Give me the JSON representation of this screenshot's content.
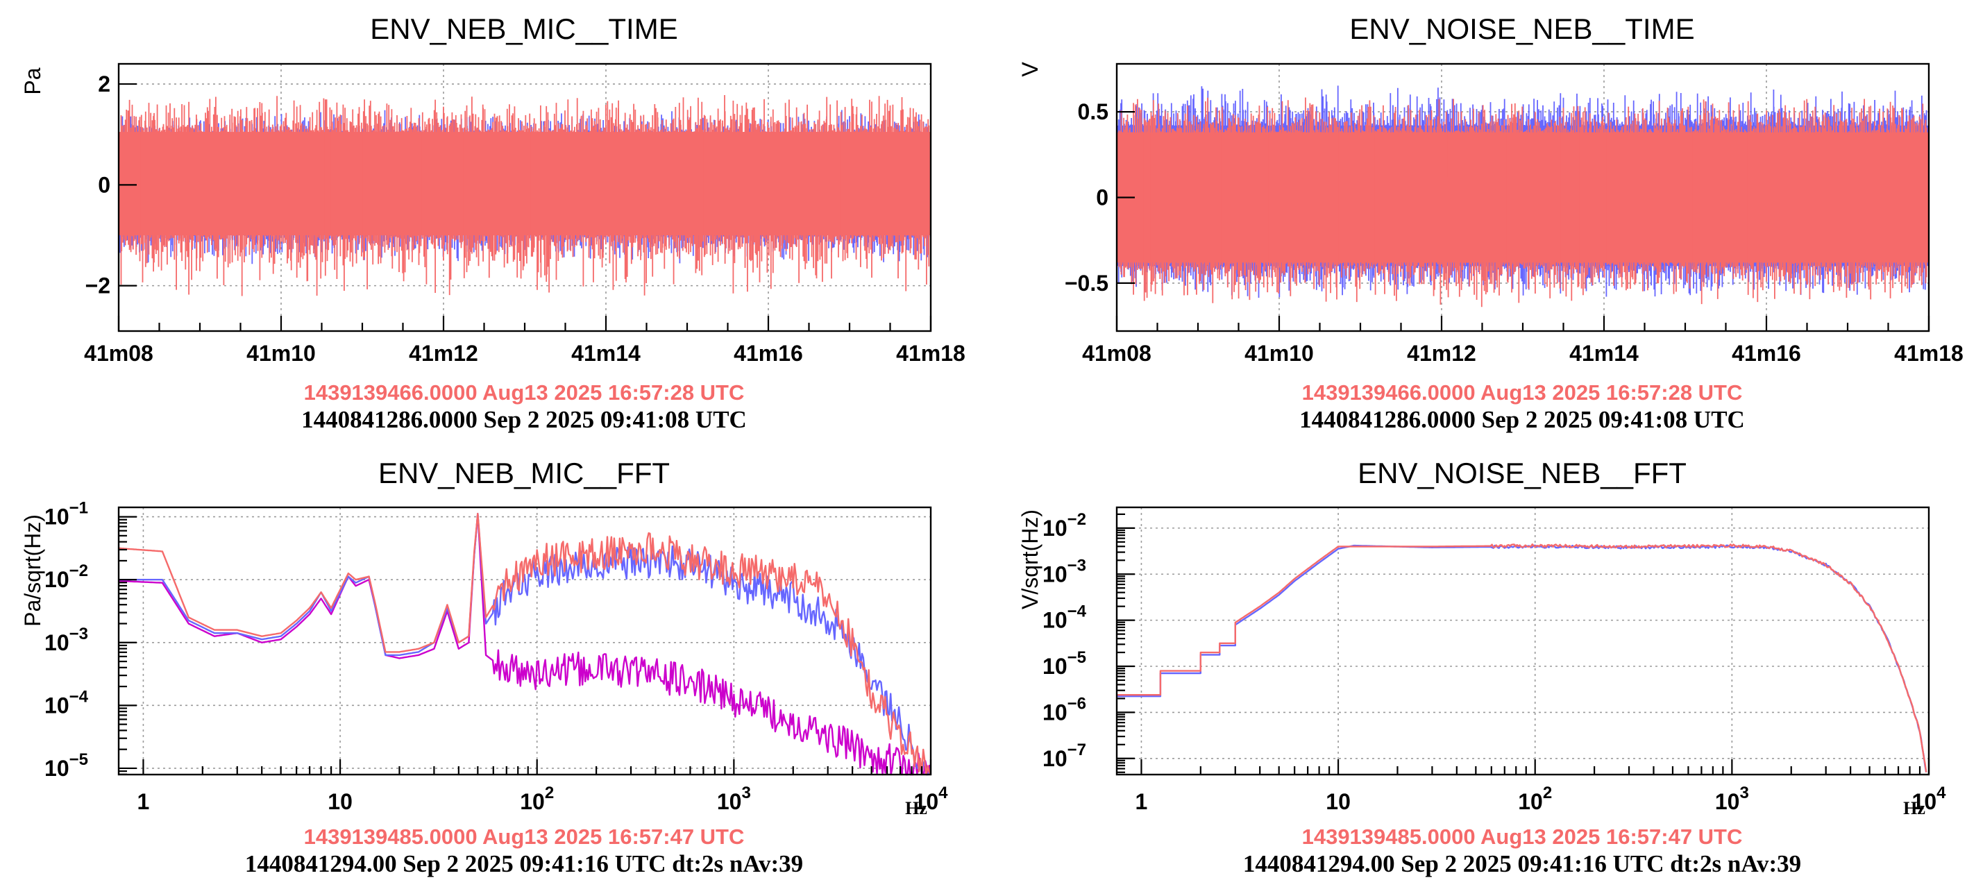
{
  "chart_data": [
    {
      "type": "line",
      "title": "ENV_NEB_MIC__TIME",
      "ylabel": "Pa",
      "xlabel": "",
      "x_ticks": [
        "41m08",
        "41m10",
        "41m12",
        "41m14",
        "41m16",
        "41m18"
      ],
      "xlim": [
        0,
        600
      ],
      "ylim": [
        -2.9,
        2.4
      ],
      "y_ticks": [
        {
          "v": 2,
          "label": "2"
        },
        {
          "v": 0,
          "label": "0"
        },
        {
          "v": -2,
          "label": "−2"
        }
      ],
      "grid": true,
      "series": [
        {
          "color": "#6666ff",
          "envelope": [
            -1.0,
            1.0
          ],
          "spike_max": 1.5,
          "spike_min": -1.6
        },
        {
          "color": "#f56a6a",
          "envelope": [
            -1.0,
            1.05
          ],
          "spike_max": 1.9,
          "spike_min": -2.3
        }
      ],
      "stamps": {
        "reference": "1439139466.0000 Aug13 2025 16:57:28 UTC",
        "current": "1440841286.0000 Sep 2 2025 09:41:08 UTC"
      }
    },
    {
      "type": "line",
      "title": "ENV_NOISE_NEB__TIME",
      "ylabel": "V",
      "xlabel": "",
      "x_ticks": [
        "41m08",
        "41m10",
        "41m12",
        "41m14",
        "41m16",
        "41m18"
      ],
      "xlim": [
        0,
        600
      ],
      "ylim": [
        -0.78,
        0.78
      ],
      "y_ticks": [
        {
          "v": 0.5,
          "label": "0.5"
        },
        {
          "v": 0,
          "label": "0"
        },
        {
          "v": -0.5,
          "label": "−0.5"
        }
      ],
      "grid": true,
      "series": [
        {
          "color": "#6666ff",
          "envelope": [
            -0.4,
            0.42
          ],
          "spike_max": 0.66,
          "spike_min": -0.6
        },
        {
          "color": "#f56a6a",
          "envelope": [
            -0.38,
            0.38
          ],
          "spike_max": 0.6,
          "spike_min": -0.66
        }
      ],
      "stamps": {
        "reference": "1439139466.0000 Aug13 2025 16:57:28 UTC",
        "current": "1440841286.0000 Sep 2 2025 09:41:08 UTC"
      }
    },
    {
      "type": "line",
      "title": "ENV_NEB_MIC__FFT",
      "ylabel": "Pa/sqrt(Hz)",
      "xlabel": "Hz",
      "x_scale": "log",
      "y_scale": "log",
      "xlim": [
        0.75,
        10000
      ],
      "ylim": [
        -5.1,
        -0.85
      ],
      "x_ticks": [
        {
          "v": 1,
          "label": "1"
        },
        {
          "v": 10,
          "label": "10"
        },
        {
          "v": 100,
          "label": "10",
          "exp": "2"
        },
        {
          "v": 1000,
          "label": "10",
          "exp": "3"
        },
        {
          "v": 10000,
          "label": "10",
          "exp": "4"
        }
      ],
      "y_ticks": [
        {
          "v": -1,
          "label": "10",
          "exp": "−1"
        },
        {
          "v": -2,
          "label": "10",
          "exp": "−2"
        },
        {
          "v": -3,
          "label": "10",
          "exp": "−3"
        },
        {
          "v": -4,
          "label": "10",
          "exp": "−4"
        },
        {
          "v": -5,
          "label": "10",
          "exp": "−5"
        }
      ],
      "grid": true,
      "series": [
        {
          "color": "#cc00cc",
          "points": [
            [
              0.75,
              -2.02
            ],
            [
              1.25,
              -2.05
            ],
            [
              1.7,
              -2.7
            ],
            [
              2.3,
              -2.9
            ],
            [
              3,
              -2.85
            ],
            [
              4,
              -3.0
            ],
            [
              5,
              -2.95
            ],
            [
              6,
              -2.75
            ],
            [
              7,
              -2.55
            ],
            [
              8,
              -2.3
            ],
            [
              9,
              -2.55
            ],
            [
              11,
              -1.95
            ],
            [
              12,
              -2.1
            ],
            [
              14,
              -2.0
            ],
            [
              15,
              -2.4
            ],
            [
              17,
              -3.2
            ],
            [
              20,
              -3.25
            ],
            [
              25,
              -3.2
            ],
            [
              30,
              -3.1
            ],
            [
              35,
              -2.5
            ],
            [
              40,
              -3.1
            ],
            [
              45,
              -3.0
            ],
            [
              48,
              -1.6
            ],
            [
              50,
              -0.95
            ],
            [
              55,
              -3.2
            ],
            [
              70,
              -3.45
            ],
            [
              100,
              -3.5
            ],
            [
              200,
              -3.4
            ],
            [
              400,
              -3.5
            ],
            [
              700,
              -3.7
            ],
            [
              1000,
              -3.9
            ],
            [
              2000,
              -4.25
            ],
            [
              3000,
              -4.5
            ],
            [
              5000,
              -4.8
            ],
            [
              8000,
              -5.0
            ],
            [
              10000,
              -5.1
            ]
          ]
        },
        {
          "color": "#6666ff",
          "points": [
            [
              0.75,
              -2.0
            ],
            [
              1.25,
              -2.0
            ],
            [
              1.7,
              -2.65
            ],
            [
              2.3,
              -2.85
            ],
            [
              3,
              -2.85
            ],
            [
              4,
              -2.95
            ],
            [
              5,
              -2.9
            ],
            [
              6,
              -2.7
            ],
            [
              7,
              -2.5
            ],
            [
              8,
              -2.2
            ],
            [
              9,
              -2.5
            ],
            [
              11,
              -1.95
            ],
            [
              12,
              -2.05
            ],
            [
              14,
              -1.95
            ],
            [
              15,
              -2.4
            ],
            [
              17,
              -3.2
            ],
            [
              20,
              -3.2
            ],
            [
              25,
              -3.15
            ],
            [
              30,
              -3.0
            ],
            [
              35,
              -2.45
            ],
            [
              40,
              -3.0
            ],
            [
              45,
              -2.9
            ],
            [
              48,
              -1.6
            ],
            [
              50,
              -0.95
            ],
            [
              55,
              -2.7
            ],
            [
              70,
              -2.2
            ],
            [
              100,
              -1.9
            ],
            [
              200,
              -1.75
            ],
            [
              400,
              -1.7
            ],
            [
              700,
              -1.8
            ],
            [
              1000,
              -2.05
            ],
            [
              2000,
              -2.3
            ],
            [
              3000,
              -2.6
            ],
            [
              4000,
              -3.0
            ],
            [
              5000,
              -3.6
            ],
            [
              7000,
              -4.3
            ],
            [
              9000,
              -4.9
            ],
            [
              10000,
              -5.1
            ]
          ]
        },
        {
          "color": "#f56a6a",
          "points": [
            [
              0.75,
              -1.5
            ],
            [
              1.25,
              -1.55
            ],
            [
              1.7,
              -2.6
            ],
            [
              2.3,
              -2.8
            ],
            [
              3,
              -2.8
            ],
            [
              4,
              -2.9
            ],
            [
              5,
              -2.85
            ],
            [
              6,
              -2.65
            ],
            [
              7,
              -2.45
            ],
            [
              8,
              -2.2
            ],
            [
              9,
              -2.45
            ],
            [
              11,
              -1.9
            ],
            [
              12,
              -2.0
            ],
            [
              14,
              -1.95
            ],
            [
              15,
              -2.35
            ],
            [
              17,
              -3.15
            ],
            [
              20,
              -3.15
            ],
            [
              25,
              -3.1
            ],
            [
              30,
              -3.0
            ],
            [
              35,
              -2.4
            ],
            [
              40,
              -3.0
            ],
            [
              45,
              -2.9
            ],
            [
              48,
              -1.55
            ],
            [
              50,
              -0.95
            ],
            [
              55,
              -2.6
            ],
            [
              70,
              -2.05
            ],
            [
              100,
              -1.7
            ],
            [
              200,
              -1.6
            ],
            [
              400,
              -1.5
            ],
            [
              700,
              -1.75
            ],
            [
              1000,
              -1.85
            ],
            [
              2000,
              -1.95
            ],
            [
              3000,
              -2.25
            ],
            [
              4000,
              -3.0
            ],
            [
              5000,
              -3.8
            ],
            [
              7000,
              -4.5
            ],
            [
              9000,
              -4.9
            ],
            [
              10000,
              -5.1
            ]
          ]
        }
      ],
      "stamps": {
        "reference": "1439139485.0000 Aug13 2025 16:57:47 UTC",
        "current": "1440841294.00 Sep 2 2025 09:41:16 UTC dt:2s nAv:39"
      }
    },
    {
      "type": "line",
      "title": "ENV_NOISE_NEB__FFT",
      "ylabel": "V/sqrt(Hz)",
      "xlabel": "Hz",
      "x_scale": "log",
      "y_scale": "log",
      "xlim": [
        0.75,
        10000
      ],
      "ylim": [
        -7.35,
        -1.55
      ],
      "x_ticks": [
        {
          "v": 1,
          "label": "1"
        },
        {
          "v": 10,
          "label": "10"
        },
        {
          "v": 100,
          "label": "10",
          "exp": "2"
        },
        {
          "v": 1000,
          "label": "10",
          "exp": "3"
        },
        {
          "v": 10000,
          "label": "10",
          "exp": "4"
        }
      ],
      "y_ticks": [
        {
          "v": -2,
          "label": "10",
          "exp": "−2"
        },
        {
          "v": -3,
          "label": "10",
          "exp": "−3"
        },
        {
          "v": -4,
          "label": "10",
          "exp": "−4"
        },
        {
          "v": -5,
          "label": "10",
          "exp": "−5"
        },
        {
          "v": -6,
          "label": "10",
          "exp": "−6"
        },
        {
          "v": -7,
          "label": "10",
          "exp": "−7"
        }
      ],
      "grid": true,
      "series": [
        {
          "color": "#6666ff",
          "points": [
            [
              0.75,
              -5.65
            ],
            [
              1.25,
              -5.65
            ],
            [
              1.25,
              -5.15
            ],
            [
              2.0,
              -5.15
            ],
            [
              2.0,
              -4.75
            ],
            [
              2.5,
              -4.75
            ],
            [
              2.5,
              -4.55
            ],
            [
              3.0,
              -4.55
            ],
            [
              3.0,
              -4.1
            ],
            [
              4,
              -3.75
            ],
            [
              5,
              -3.45
            ],
            [
              6,
              -3.15
            ],
            [
              8,
              -2.75
            ],
            [
              10,
              -2.45
            ],
            [
              12,
              -2.38
            ],
            [
              30,
              -2.42
            ],
            [
              100,
              -2.4
            ],
            [
              300,
              -2.42
            ],
            [
              1000,
              -2.4
            ],
            [
              1500,
              -2.42
            ],
            [
              2000,
              -2.5
            ],
            [
              3000,
              -2.8
            ],
            [
              4000,
              -3.2
            ],
            [
              5000,
              -3.7
            ],
            [
              6000,
              -4.3
            ],
            [
              7000,
              -5.0
            ],
            [
              8000,
              -5.7
            ],
            [
              9000,
              -6.4
            ],
            [
              9700,
              -7.3
            ]
          ]
        },
        {
          "color": "#f56a6a",
          "points": [
            [
              0.75,
              -5.62
            ],
            [
              1.25,
              -5.62
            ],
            [
              1.25,
              -5.1
            ],
            [
              2.0,
              -5.1
            ],
            [
              2.0,
              -4.7
            ],
            [
              2.5,
              -4.7
            ],
            [
              2.5,
              -4.5
            ],
            [
              3.0,
              -4.5
            ],
            [
              3.0,
              -4.05
            ],
            [
              4,
              -3.7
            ],
            [
              5,
              -3.4
            ],
            [
              6,
              -3.1
            ],
            [
              8,
              -2.7
            ],
            [
              10,
              -2.4
            ],
            [
              12,
              -2.4
            ],
            [
              30,
              -2.4
            ],
            [
              100,
              -2.38
            ],
            [
              300,
              -2.4
            ],
            [
              1000,
              -2.38
            ],
            [
              1500,
              -2.4
            ],
            [
              2000,
              -2.5
            ],
            [
              3000,
              -2.8
            ],
            [
              4000,
              -3.2
            ],
            [
              5000,
              -3.7
            ],
            [
              6000,
              -4.3
            ],
            [
              7000,
              -5.0
            ],
            [
              8000,
              -5.7
            ],
            [
              9000,
              -6.4
            ],
            [
              9700,
              -7.3
            ]
          ]
        }
      ],
      "stamps": {
        "reference": "1439139485.0000 Aug13 2025 16:57:47 UTC",
        "current": "1440841294.00 Sep 2 2025 09:41:16 UTC dt:2s nAv:39"
      }
    }
  ]
}
